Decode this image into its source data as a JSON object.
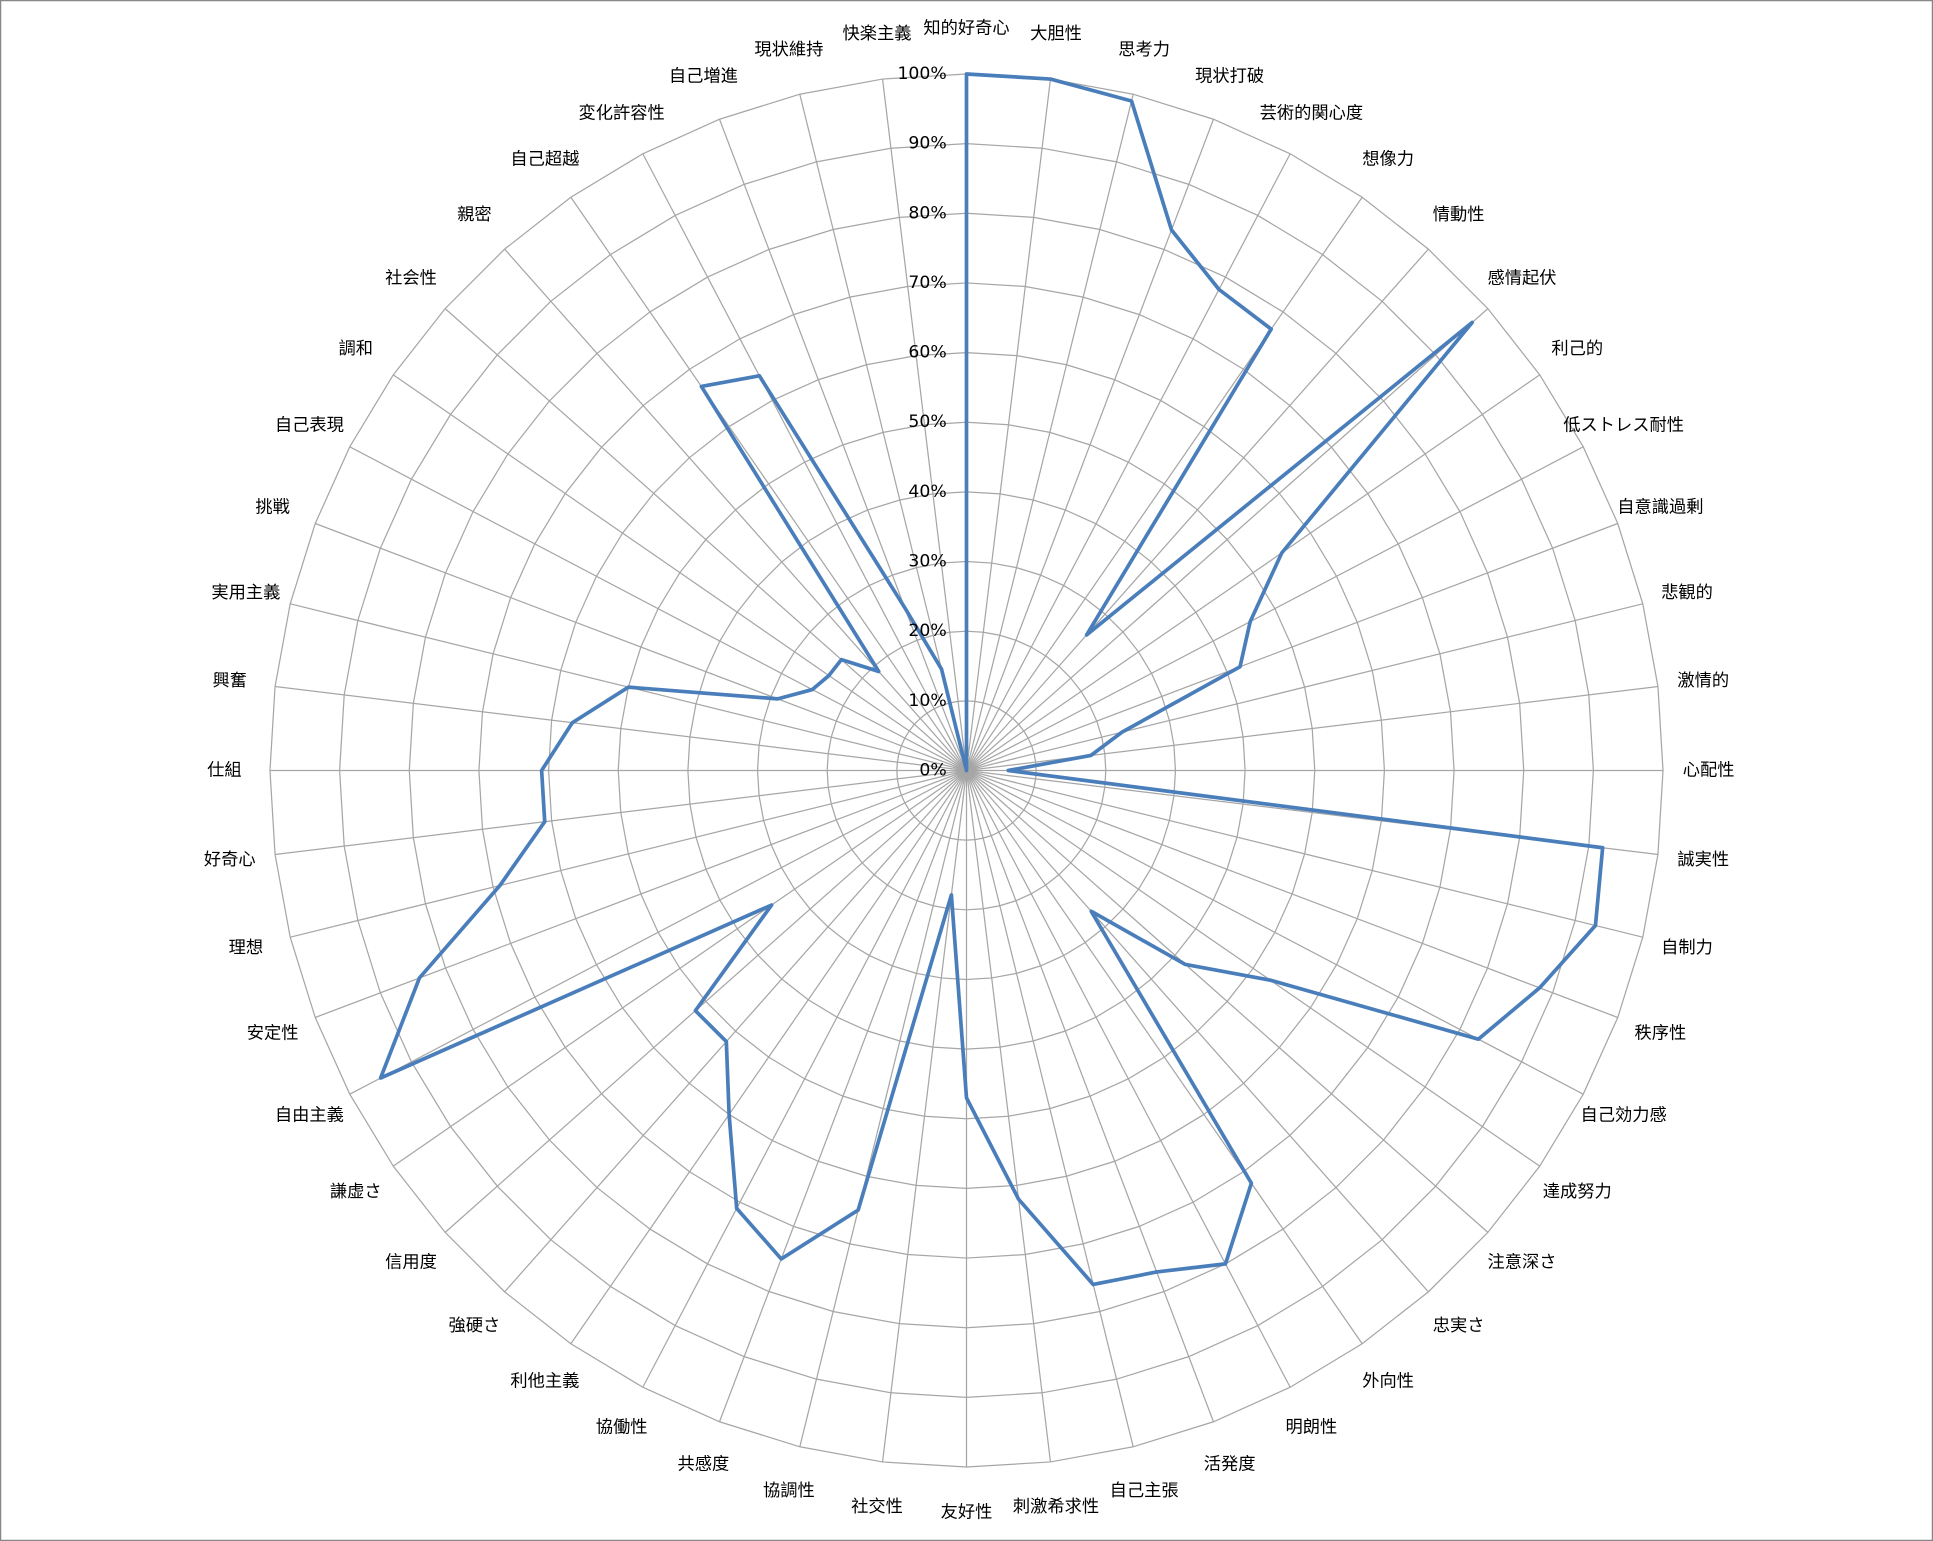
{
  "chart_data": {
    "type": "radar",
    "categories": [
      "知的好奇心",
      "大胆性",
      "思考力",
      "現状打破",
      "芸術的関心度",
      "想像力",
      "情動性",
      "感情起伏",
      "利己的",
      "低ストレス耐性",
      "自意識過剰",
      "悲観的",
      "激情的",
      "心配性",
      "誠実性",
      "自制力",
      "秩序性",
      "自己効力感",
      "達成努力",
      "注意深さ",
      "忠実さ",
      "外向性",
      "明朗性",
      "活発度",
      "自己主張",
      "刺激希求性",
      "友好性",
      "社交性",
      "協調性",
      "共感度",
      "協働性",
      "利他主義",
      "強硬さ",
      "信用度",
      "謙虚さ",
      "自由主義",
      "安定性",
      "理想",
      "好奇心",
      "仕組",
      "興奮",
      "実用主義",
      "挑戦",
      "自己表現",
      "調和",
      "社会性",
      "親密",
      "自己超越",
      "変化許容性",
      "自己増進",
      "現状維持",
      "快楽主義"
    ],
    "values": [
      100,
      100,
      99,
      83,
      78,
      77,
      26,
      97,
      55,
      46,
      42,
      23,
      18,
      6,
      92,
      93,
      88,
      83,
      53,
      42,
      27,
      72,
      80,
      77,
      76,
      62,
      47,
      18,
      65,
      75,
      71,
      60,
      52,
      52,
      34,
      95,
      84,
      69,
      61,
      61,
      57,
      50,
      29,
      25,
      24,
      24,
      19,
      67,
      64,
      25,
      15,
      0
    ],
    "color": "#4a7ebb",
    "ylim": [
      0,
      100
    ],
    "yticks": [
      {
        "value": 0,
        "label": "0%"
      },
      {
        "value": 10,
        "label": "10%"
      },
      {
        "value": 20,
        "label": "20%"
      },
      {
        "value": 30,
        "label": "30%"
      },
      {
        "value": 40,
        "label": "40%"
      },
      {
        "value": 50,
        "label": "50%"
      },
      {
        "value": 60,
        "label": "60%"
      },
      {
        "value": 70,
        "label": "70%"
      },
      {
        "value": 80,
        "label": "80%"
      },
      {
        "value": 90,
        "label": "90%"
      },
      {
        "value": 100,
        "label": "100%"
      }
    ],
    "grid": true
  }
}
